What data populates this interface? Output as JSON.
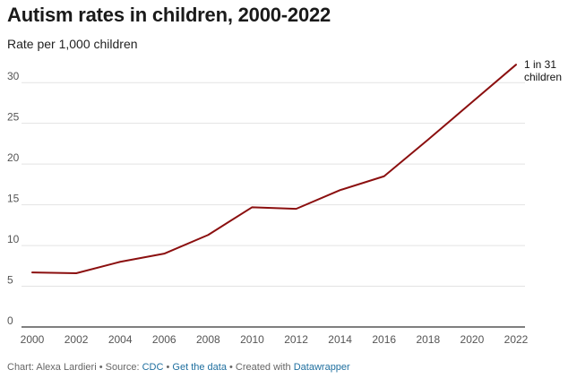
{
  "chart_data": {
    "type": "line",
    "title": "Autism rates in children, 2000-2022",
    "subtitle": "Rate per 1,000 children",
    "xlabel": "",
    "ylabel": "",
    "x": [
      2000,
      2002,
      2004,
      2006,
      2008,
      2010,
      2012,
      2014,
      2016,
      2018,
      2020,
      2022
    ],
    "series": [
      {
        "values": [
          6.7,
          6.6,
          8.0,
          9.0,
          11.3,
          14.7,
          14.5,
          16.8,
          18.5,
          23.0,
          27.6,
          32.2
        ]
      }
    ],
    "xlim": [
      2000,
      2022
    ],
    "ylim": [
      0,
      32
    ],
    "yticks": [
      0,
      5,
      10,
      15,
      20,
      25,
      30
    ],
    "xticks": [
      2000,
      2002,
      2004,
      2006,
      2008,
      2010,
      2012,
      2014,
      2016,
      2018,
      2020,
      2022
    ],
    "grid": true,
    "annotation": {
      "lines": [
        "1 in 31",
        "children"
      ]
    },
    "colors": {
      "line": "#8b0f0f",
      "grid": "#e3e3e3",
      "axis": "#333333"
    }
  },
  "footer": {
    "prefix": "Chart: Alexa Lardieri • Source: ",
    "source_link": "CDC",
    "separator": " • ",
    "data_link": "Get the data",
    "created_text": " • Created with ",
    "tool_link": "Datawrapper"
  }
}
